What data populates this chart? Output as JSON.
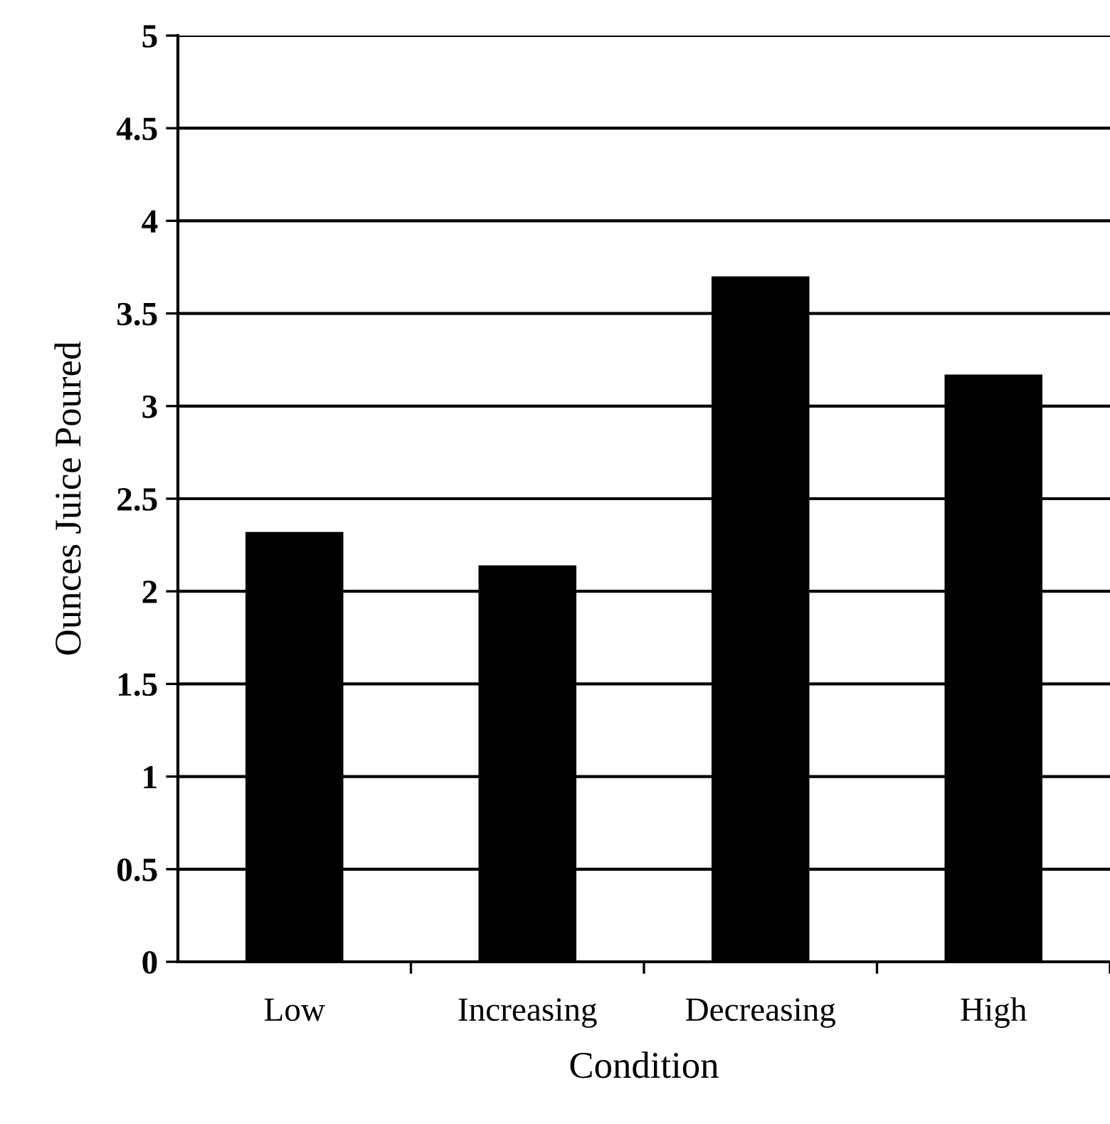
{
  "chart_data": {
    "type": "bar",
    "xlabel": "Condition",
    "ylabel": "Ounces Juice Poured",
    "categories": [
      "Low",
      "Increasing",
      "Decreasing",
      "High"
    ],
    "values": [
      2.32,
      2.14,
      3.7,
      3.17
    ],
    "color": "#000000",
    "ylim": [
      0,
      5
    ],
    "yticks": [
      0,
      0.5,
      1,
      1.5,
      2,
      2.5,
      3,
      3.5,
      4,
      4.5,
      5
    ],
    "grid": "y",
    "legend": false
  }
}
